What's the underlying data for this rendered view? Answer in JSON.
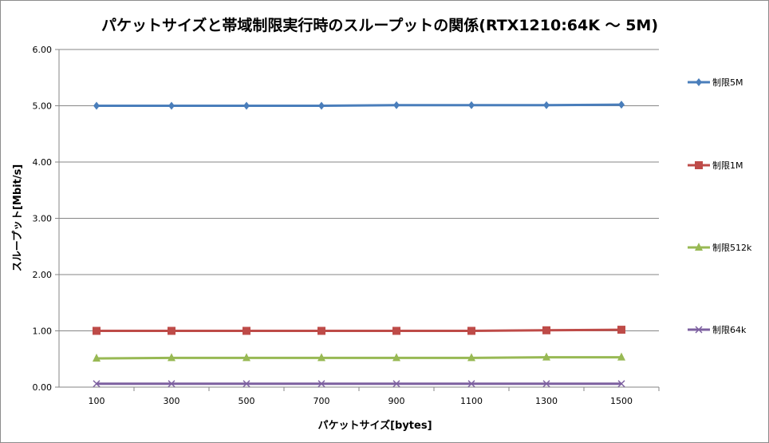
{
  "chart_data": {
    "type": "line",
    "title": "パケットサイズと帯域制限実行時のスループットの関係(RTX1210:64K ～ 5M)",
    "xlabel": "パケットサイズ[bytes]",
    "ylabel": "スループット[Mbit/s]",
    "categories": [
      "100",
      "300",
      "500",
      "700",
      "900",
      "1100",
      "1300",
      "1500"
    ],
    "ylim": [
      0,
      6
    ],
    "yticks": [
      "0.00",
      "1.00",
      "2.00",
      "3.00",
      "4.00",
      "5.00",
      "6.00"
    ],
    "grid": true,
    "legend": "right",
    "series": [
      {
        "name": "制限5M",
        "color": "#4a7ebb",
        "marker": "diamond",
        "values": [
          5.0,
          5.0,
          5.0,
          5.0,
          5.01,
          5.01,
          5.01,
          5.02
        ]
      },
      {
        "name": "制限1M",
        "color": "#be4b48",
        "marker": "square",
        "values": [
          1.0,
          1.0,
          1.0,
          1.0,
          1.0,
          1.0,
          1.01,
          1.02
        ]
      },
      {
        "name": "制限512k",
        "color": "#98b954",
        "marker": "triangle",
        "values": [
          0.51,
          0.52,
          0.52,
          0.52,
          0.52,
          0.52,
          0.53,
          0.53
        ]
      },
      {
        "name": "制限64k",
        "color": "#7d60a0",
        "marker": "x",
        "values": [
          0.06,
          0.06,
          0.06,
          0.06,
          0.06,
          0.06,
          0.06,
          0.06
        ]
      }
    ]
  }
}
